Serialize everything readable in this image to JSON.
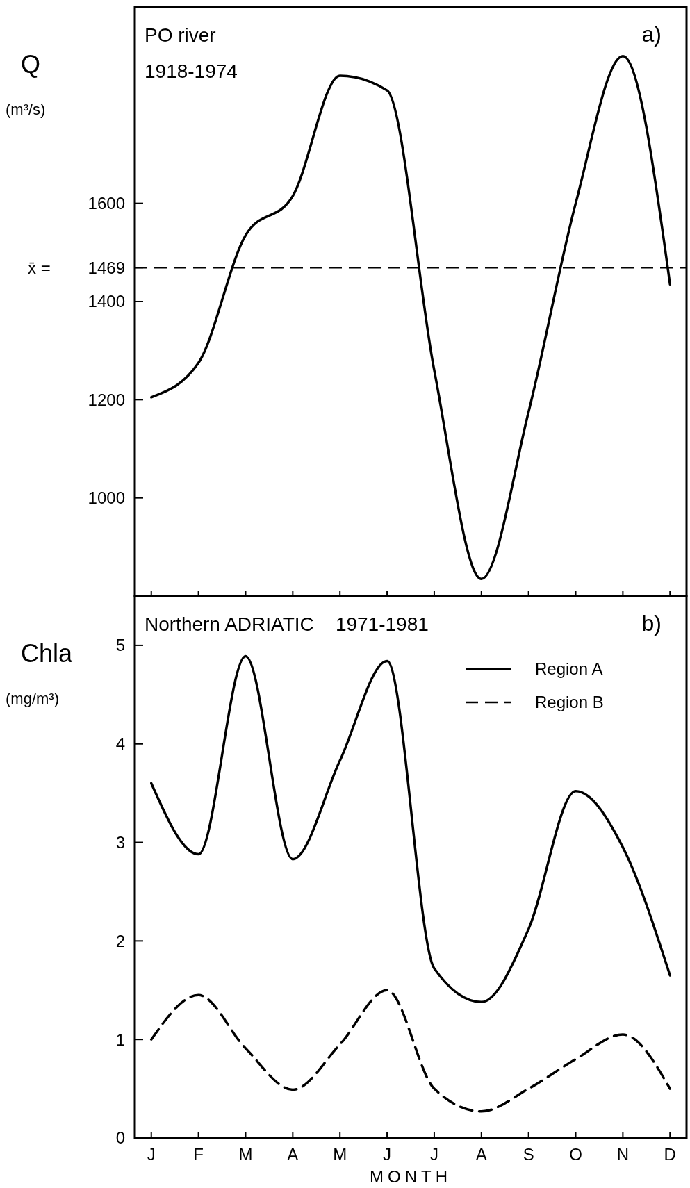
{
  "chart_data": [
    {
      "type": "line",
      "title": "PO river",
      "subtitle": "1918-1974",
      "ylabel": "Q (m³/s)",
      "annotations": [
        "a)"
      ],
      "categories": [
        null,
        null,
        null,
        null,
        null,
        null,
        null,
        null,
        null,
        null,
        null,
        null
      ],
      "ylim": [
        800,
        2000
      ],
      "yticks": [
        1000,
        1200,
        1400,
        1469,
        1600
      ],
      "tick_labels": "y",
      "grid": false,
      "legend": false,
      "ref_lines": [
        {
          "axis": "y",
          "value": 1469,
          "label": "x̄ =",
          "color": "#000000",
          "line_style": "dashed"
        }
      ],
      "series": [
        {
          "color": "#000000",
          "line_style": "solid",
          "values": [
            1205,
            1275,
            1535,
            1615,
            1860,
            1830,
            1260,
            835,
            1175,
            1600,
            1900,
            1435
          ]
        }
      ]
    },
    {
      "type": "line",
      "title": "Northern ADRIATIC    1971-1981",
      "xlabel": "MONTH",
      "ylabel": "Chla (mg/m³)",
      "annotations": [
        "b)"
      ],
      "categories": [
        "J",
        "F",
        "M",
        "A",
        "M",
        "J",
        "J",
        "A",
        "S",
        "O",
        "N",
        "D"
      ],
      "ylim": [
        0,
        5.5
      ],
      "yticks": [
        0,
        1,
        2,
        3,
        4,
        5
      ],
      "grid": false,
      "legend": "top right",
      "series": [
        {
          "name": "Region A",
          "color": "#000000",
          "line_style": "solid",
          "values": [
            3.6,
            2.88,
            4.89,
            2.83,
            3.83,
            4.84,
            1.72,
            1.38,
            2.12,
            3.52,
            2.95,
            1.65
          ]
        },
        {
          "name": "Region B",
          "color": "#000000",
          "line_style": "dashed",
          "values": [
            1.0,
            1.45,
            0.91,
            0.49,
            0.95,
            1.5,
            0.5,
            0.27,
            0.5,
            0.8,
            1.05,
            0.5
          ]
        }
      ]
    }
  ]
}
